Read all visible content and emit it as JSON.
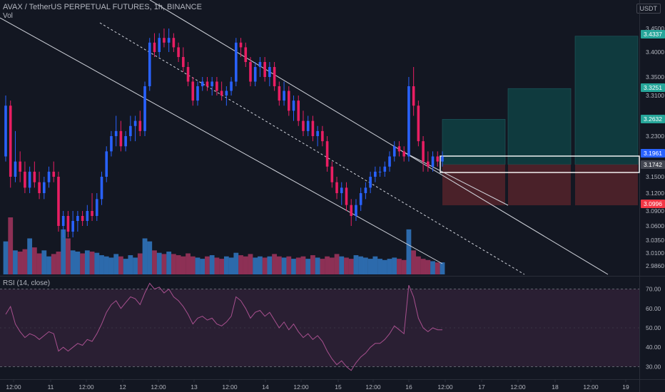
{
  "header": {
    "symbol_title": "AVAX / TetherUS PERPETUAL FUTURES, 1h, BINANCE",
    "volume_label": "Vol",
    "currency_button": "USDT"
  },
  "colors": {
    "background": "#131722",
    "up": "#2962ff",
    "down": "#e91e63",
    "up_volume": "#3179c4",
    "down_volume": "#a3355e",
    "rsi_line": "#a8508f",
    "rsi_band": "#2a1f33",
    "target_zone": "#0f3a3e",
    "stop_zone": "#4a2129",
    "channel": "#d1d4dc"
  },
  "chart_data": [
    {
      "type": "candlestick",
      "title": "AVAX / TetherUS PERPETUAL FUTURES, 1h, BINANCE",
      "y_axis_ticks": [
        "3.4500",
        "3.4000",
        "3.3500",
        "3.3100",
        "3.2300",
        "3.1500",
        "3.1200",
        "3.0900",
        "3.0600",
        "3.0350",
        "3.0100",
        "2.9860"
      ],
      "x_axis_ticks": [
        "12:00",
        "11",
        "12:00",
        "12",
        "12:00",
        "13",
        "12:00",
        "14",
        "12:00",
        "15",
        "12:00",
        "16",
        "12:00",
        "17",
        "12:00",
        "18",
        "12:00",
        "19"
      ],
      "price_tags": [
        {
          "label": "3.4337",
          "color": "#26a69a"
        },
        {
          "label": "3.3251",
          "color": "#26a69a"
        },
        {
          "label": "3.2632",
          "color": "#26a69a"
        },
        {
          "label": "3.1961",
          "color": "#2962ff"
        },
        {
          "label": "3.1742",
          "color": "#434651"
        },
        {
          "label": "3.0996",
          "color": "#f23645"
        }
      ],
      "ohlc": [
        [
          3.19,
          3.31,
          3.18,
          3.29
        ],
        [
          3.29,
          3.3,
          3.13,
          3.15
        ],
        [
          3.15,
          3.24,
          3.14,
          3.18
        ],
        [
          3.18,
          3.2,
          3.14,
          3.16
        ],
        [
          3.16,
          3.18,
          3.12,
          3.13
        ],
        [
          3.13,
          3.17,
          3.12,
          3.16
        ],
        [
          3.16,
          3.18,
          3.13,
          3.14
        ],
        [
          3.14,
          3.16,
          3.11,
          3.12
        ],
        [
          3.12,
          3.15,
          3.11,
          3.14
        ],
        [
          3.14,
          3.17,
          3.13,
          3.16
        ],
        [
          3.16,
          3.18,
          3.14,
          3.15
        ],
        [
          3.15,
          3.16,
          3.05,
          3.06
        ],
        [
          3.06,
          3.09,
          3.04,
          3.08
        ],
        [
          3.08,
          3.09,
          3.04,
          3.05
        ],
        [
          3.05,
          3.09,
          3.04,
          3.07
        ],
        [
          3.07,
          3.09,
          3.05,
          3.08
        ],
        [
          3.08,
          3.09,
          3.06,
          3.07
        ],
        [
          3.07,
          3.1,
          3.06,
          3.09
        ],
        [
          3.09,
          3.12,
          3.07,
          3.08
        ],
        [
          3.08,
          3.12,
          3.07,
          3.11
        ],
        [
          3.11,
          3.16,
          3.1,
          3.15
        ],
        [
          3.15,
          3.21,
          3.14,
          3.2
        ],
        [
          3.2,
          3.24,
          3.19,
          3.23
        ],
        [
          3.23,
          3.27,
          3.21,
          3.24
        ],
        [
          3.24,
          3.26,
          3.2,
          3.21
        ],
        [
          3.21,
          3.24,
          3.2,
          3.23
        ],
        [
          3.23,
          3.27,
          3.22,
          3.25
        ],
        [
          3.25,
          3.27,
          3.22,
          3.26
        ],
        [
          3.26,
          3.28,
          3.23,
          3.24
        ],
        [
          3.24,
          3.34,
          3.23,
          3.33
        ],
        [
          3.33,
          3.43,
          3.32,
          3.42
        ],
        [
          3.42,
          3.44,
          3.39,
          3.4
        ],
        [
          3.4,
          3.44,
          3.39,
          3.43
        ],
        [
          3.43,
          3.45,
          3.41,
          3.42
        ],
        [
          3.42,
          3.45,
          3.4,
          3.43
        ],
        [
          3.43,
          3.44,
          3.4,
          3.41
        ],
        [
          3.41,
          3.42,
          3.38,
          3.39
        ],
        [
          3.39,
          3.41,
          3.36,
          3.37
        ],
        [
          3.37,
          3.38,
          3.33,
          3.34
        ],
        [
          3.34,
          3.35,
          3.29,
          3.3
        ],
        [
          3.3,
          3.34,
          3.29,
          3.33
        ],
        [
          3.33,
          3.35,
          3.32,
          3.34
        ],
        [
          3.34,
          3.35,
          3.32,
          3.33
        ],
        [
          3.33,
          3.35,
          3.31,
          3.34
        ],
        [
          3.34,
          3.35,
          3.31,
          3.32
        ],
        [
          3.32,
          3.34,
          3.3,
          3.31
        ],
        [
          3.31,
          3.33,
          3.29,
          3.32
        ],
        [
          3.32,
          3.35,
          3.31,
          3.34
        ],
        [
          3.34,
          3.43,
          3.33,
          3.42
        ],
        [
          3.42,
          3.43,
          3.39,
          3.41
        ],
        [
          3.41,
          3.42,
          3.37,
          3.38
        ],
        [
          3.38,
          3.39,
          3.33,
          3.34
        ],
        [
          3.34,
          3.38,
          3.33,
          3.37
        ],
        [
          3.37,
          3.39,
          3.35,
          3.38
        ],
        [
          3.38,
          3.39,
          3.34,
          3.35
        ],
        [
          3.35,
          3.38,
          3.33,
          3.37
        ],
        [
          3.37,
          3.38,
          3.32,
          3.33
        ],
        [
          3.33,
          3.34,
          3.29,
          3.3
        ],
        [
          3.3,
          3.34,
          3.29,
          3.32
        ],
        [
          3.32,
          3.33,
          3.27,
          3.28
        ],
        [
          3.28,
          3.31,
          3.26,
          3.3
        ],
        [
          3.3,
          3.31,
          3.25,
          3.26
        ],
        [
          3.26,
          3.28,
          3.23,
          3.24
        ],
        [
          3.24,
          3.27,
          3.23,
          3.26
        ],
        [
          3.26,
          3.27,
          3.22,
          3.23
        ],
        [
          3.23,
          3.25,
          3.21,
          3.24
        ],
        [
          3.24,
          3.25,
          3.21,
          3.22
        ],
        [
          3.22,
          3.23,
          3.16,
          3.17
        ],
        [
          3.17,
          3.18,
          3.13,
          3.14
        ],
        [
          3.14,
          3.15,
          3.11,
          3.12
        ],
        [
          3.12,
          3.14,
          3.1,
          3.13
        ],
        [
          3.13,
          3.14,
          3.09,
          3.1
        ],
        [
          3.1,
          3.11,
          3.06,
          3.08
        ],
        [
          3.08,
          3.11,
          3.07,
          3.1
        ],
        [
          3.1,
          3.13,
          3.09,
          3.12
        ],
        [
          3.12,
          3.14,
          3.11,
          3.13
        ],
        [
          3.13,
          3.16,
          3.12,
          3.15
        ],
        [
          3.15,
          3.17,
          3.14,
          3.16
        ],
        [
          3.16,
          3.17,
          3.15,
          3.16
        ],
        [
          3.16,
          3.18,
          3.15,
          3.17
        ],
        [
          3.17,
          3.2,
          3.16,
          3.19
        ],
        [
          3.19,
          3.22,
          3.18,
          3.21
        ],
        [
          3.21,
          3.22,
          3.19,
          3.2
        ],
        [
          3.2,
          3.21,
          3.18,
          3.19
        ],
        [
          3.19,
          3.35,
          3.18,
          3.33
        ],
        [
          3.33,
          3.37,
          3.27,
          3.29
        ],
        [
          3.29,
          3.3,
          3.21,
          3.22
        ],
        [
          3.22,
          3.23,
          3.16,
          3.18
        ],
        [
          3.18,
          3.2,
          3.16,
          3.17
        ],
        [
          3.17,
          3.2,
          3.16,
          3.19
        ],
        [
          3.19,
          3.2,
          3.17,
          3.18
        ],
        [
          3.18,
          3.2,
          3.17,
          3.19
        ]
      ],
      "volume": [
        55,
        95,
        40,
        38,
        42,
        60,
        45,
        35,
        40,
        30,
        34,
        38,
        75,
        60,
        40,
        38,
        35,
        40,
        38,
        36,
        32,
        30,
        28,
        34,
        30,
        26,
        32,
        28,
        35,
        60,
        55,
        40,
        36,
        34,
        38,
        34,
        32,
        30,
        35,
        30,
        28,
        26,
        30,
        32,
        28,
        26,
        30,
        28,
        36,
        32,
        30,
        34,
        28,
        30,
        28,
        30,
        34,
        30,
        28,
        30,
        26,
        28,
        30,
        26,
        32,
        28,
        26,
        30,
        28,
        34,
        30,
        28,
        26,
        32,
        30,
        28,
        26,
        30,
        26,
        24,
        26,
        28,
        26,
        24,
        75,
        40,
        30,
        26,
        24,
        22,
        20,
        20
      ],
      "positions": {
        "entry": 3.1742,
        "targets": [
          3.2632,
          3.3251,
          3.4337
        ],
        "stop": 3.0996
      }
    },
    {
      "type": "line",
      "title": "RSI (14, close)",
      "y_axis_ticks": [
        "70.00",
        "60.00",
        "50.00",
        "40.00",
        "30.00"
      ],
      "band": [
        30,
        70
      ],
      "ylim": [
        25,
        75
      ],
      "values": [
        57,
        61,
        52,
        48,
        45,
        47,
        46,
        44,
        46,
        48,
        47,
        38,
        40,
        38,
        40,
        42,
        41,
        44,
        43,
        47,
        52,
        58,
        62,
        64,
        60,
        63,
        66,
        65,
        62,
        68,
        73,
        70,
        71,
        68,
        70,
        66,
        64,
        61,
        57,
        52,
        55,
        56,
        54,
        55,
        52,
        51,
        53,
        56,
        66,
        64,
        60,
        55,
        58,
        59,
        56,
        58,
        54,
        50,
        53,
        49,
        52,
        48,
        45,
        47,
        44,
        46,
        43,
        38,
        34,
        31,
        33,
        30,
        28,
        32,
        35,
        37,
        40,
        42,
        42,
        44,
        47,
        51,
        49,
        47,
        72,
        66,
        55,
        50,
        48,
        50,
        49,
        49
      ]
    }
  ]
}
